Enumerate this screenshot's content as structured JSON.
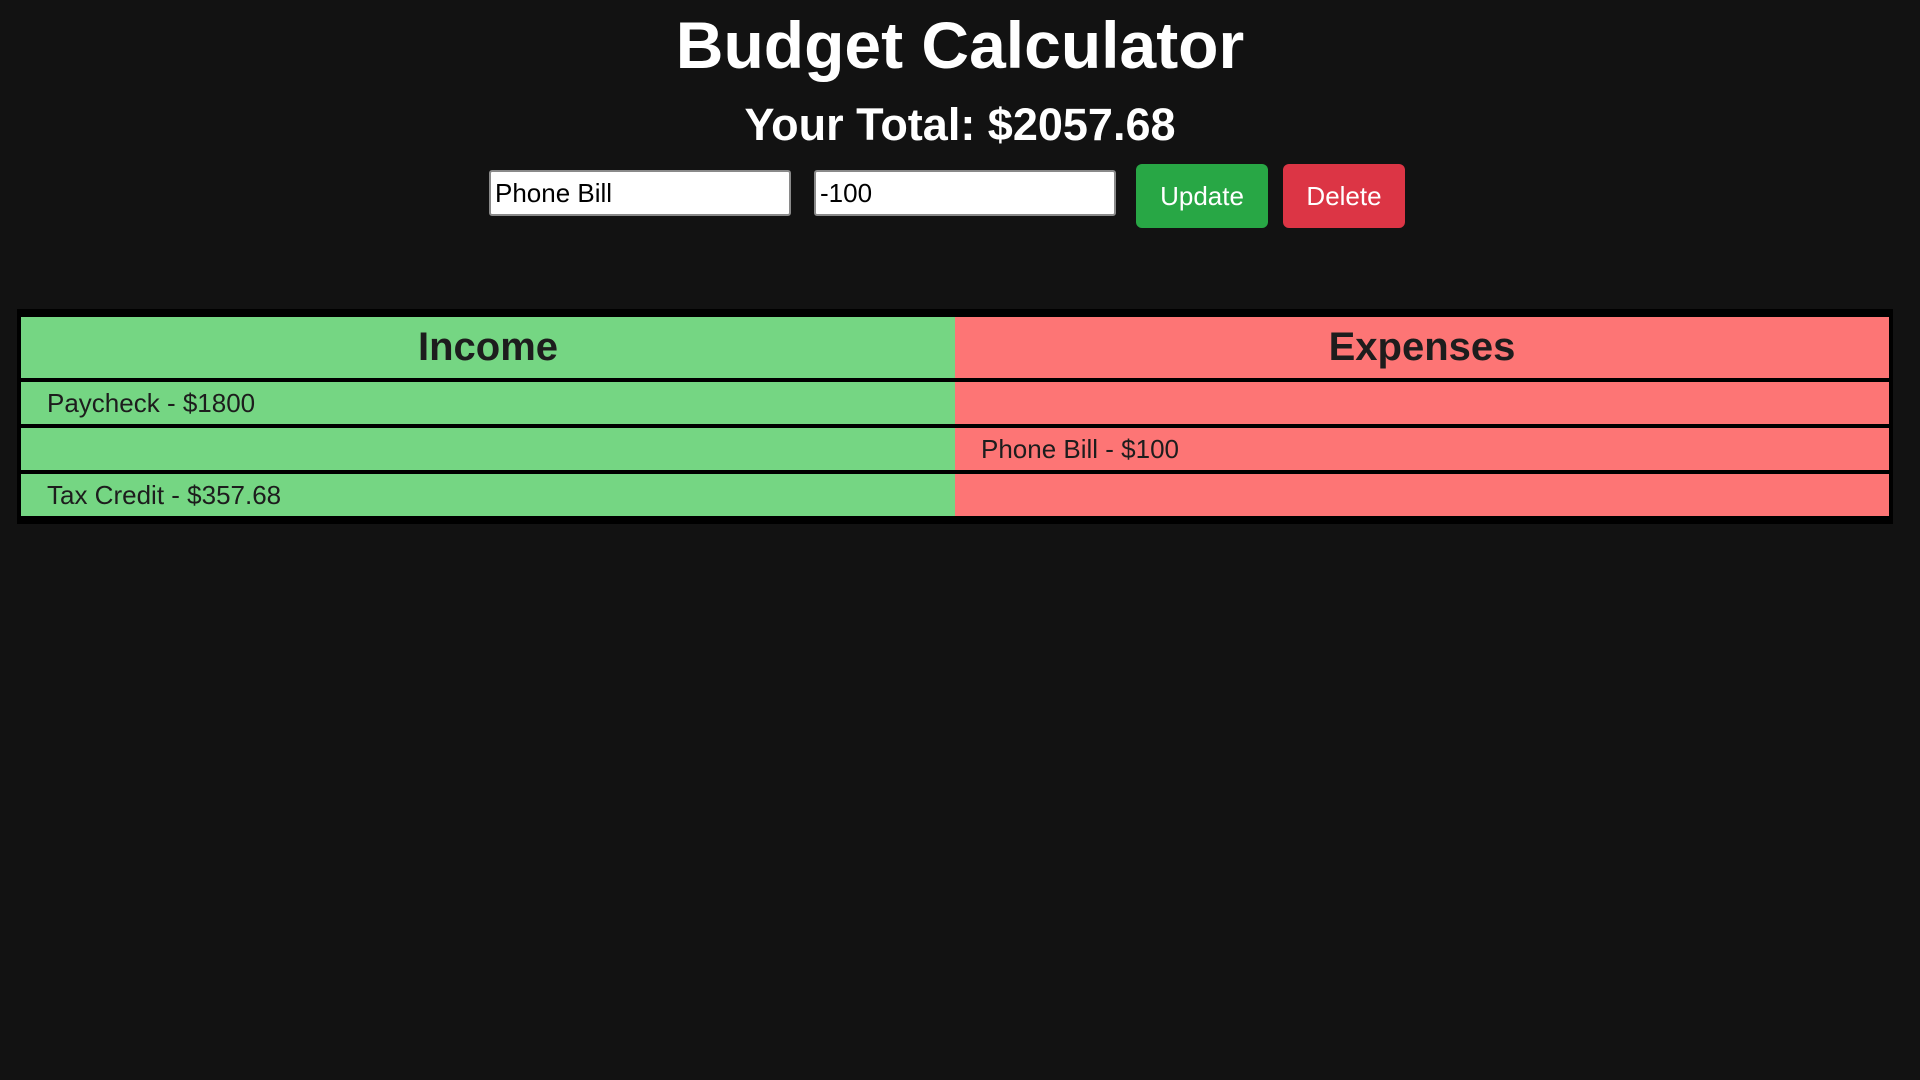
{
  "app": {
    "title": "Budget Calculator",
    "total_label": "Your Total: $2057.68"
  },
  "form": {
    "name_value": "Phone Bill",
    "amount_value": "-100",
    "update_label": "Update",
    "delete_label": "Delete"
  },
  "table": {
    "headers": {
      "income": "Income",
      "expenses": "Expenses"
    },
    "rows": [
      {
        "income": "Paycheck - $1800",
        "expense": ""
      },
      {
        "income": "",
        "expense": "Phone Bill - $100"
      },
      {
        "income": "Tax Credit - $357.68",
        "expense": ""
      }
    ]
  },
  "colors": {
    "background": "#121212",
    "income": "#75d683",
    "expense": "#fd7575",
    "update_button": "#28a745",
    "delete_button": "#dc3545"
  }
}
